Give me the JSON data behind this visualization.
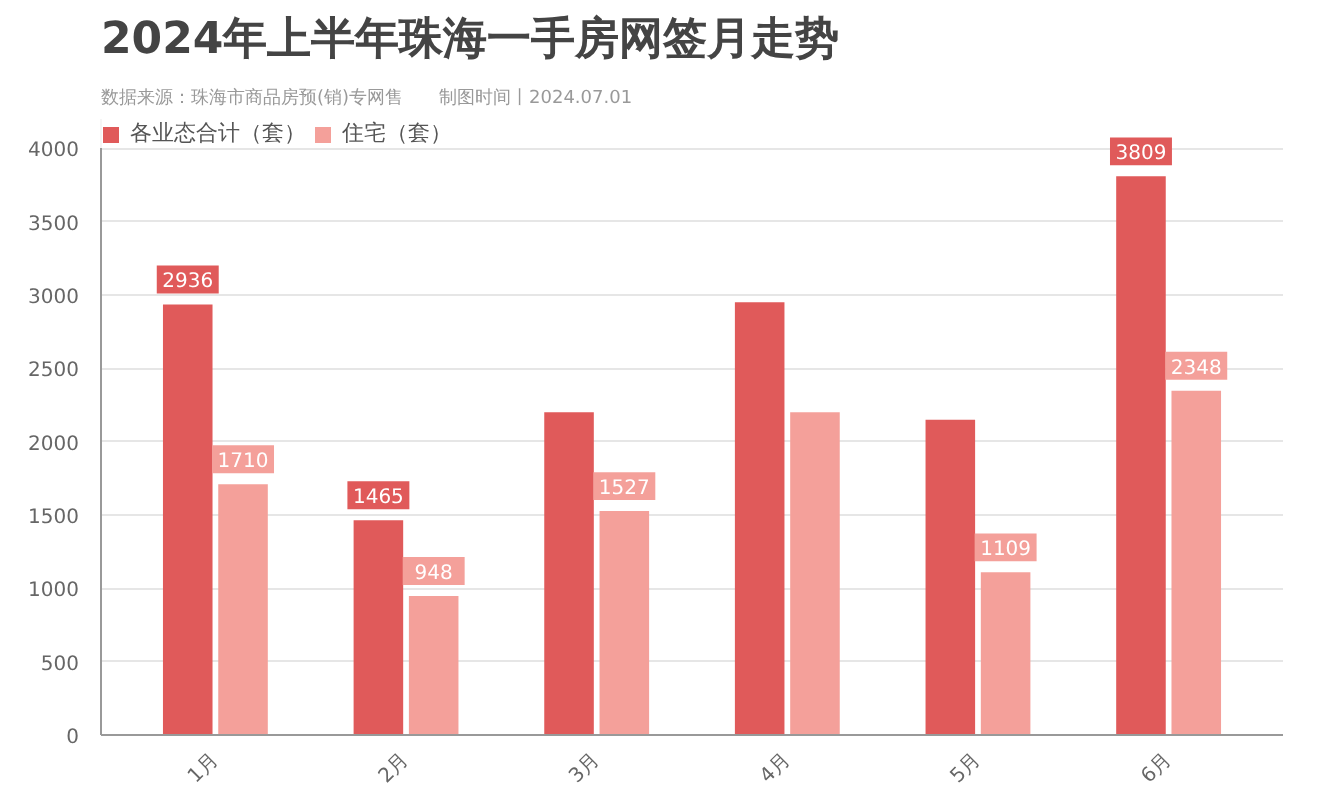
{
  "chart_data": {
    "type": "bar",
    "title": "2024年上半年珠海一手房网签月走势",
    "subtitle": "数据来源：珠海市商品房预(销)专网售　　制图时间丨2024.07.01",
    "categories": [
      "1月",
      "2月",
      "3月",
      "4月",
      "5月",
      "6月"
    ],
    "series": [
      {
        "name": "各业态合计（套）",
        "color": "#e05a5a",
        "values": [
          2936,
          1465,
          2200,
          2950,
          2150,
          3809
        ],
        "value_labels": [
          "2936",
          "1465",
          null,
          null,
          null,
          "3809"
        ]
      },
      {
        "name": "住宅（套）",
        "color": "#f4a09a",
        "values": [
          1710,
          948,
          1527,
          2200,
          1109,
          2348
        ],
        "value_labels": [
          "1710",
          "948",
          "1527",
          null,
          "1109",
          "2348"
        ]
      }
    ],
    "ylim": [
      0,
      4200
    ],
    "yticks": [
      0,
      500,
      1000,
      1500,
      2000,
      2500,
      3000,
      3500,
      4000
    ],
    "grid": "y",
    "legend": "top left"
  }
}
